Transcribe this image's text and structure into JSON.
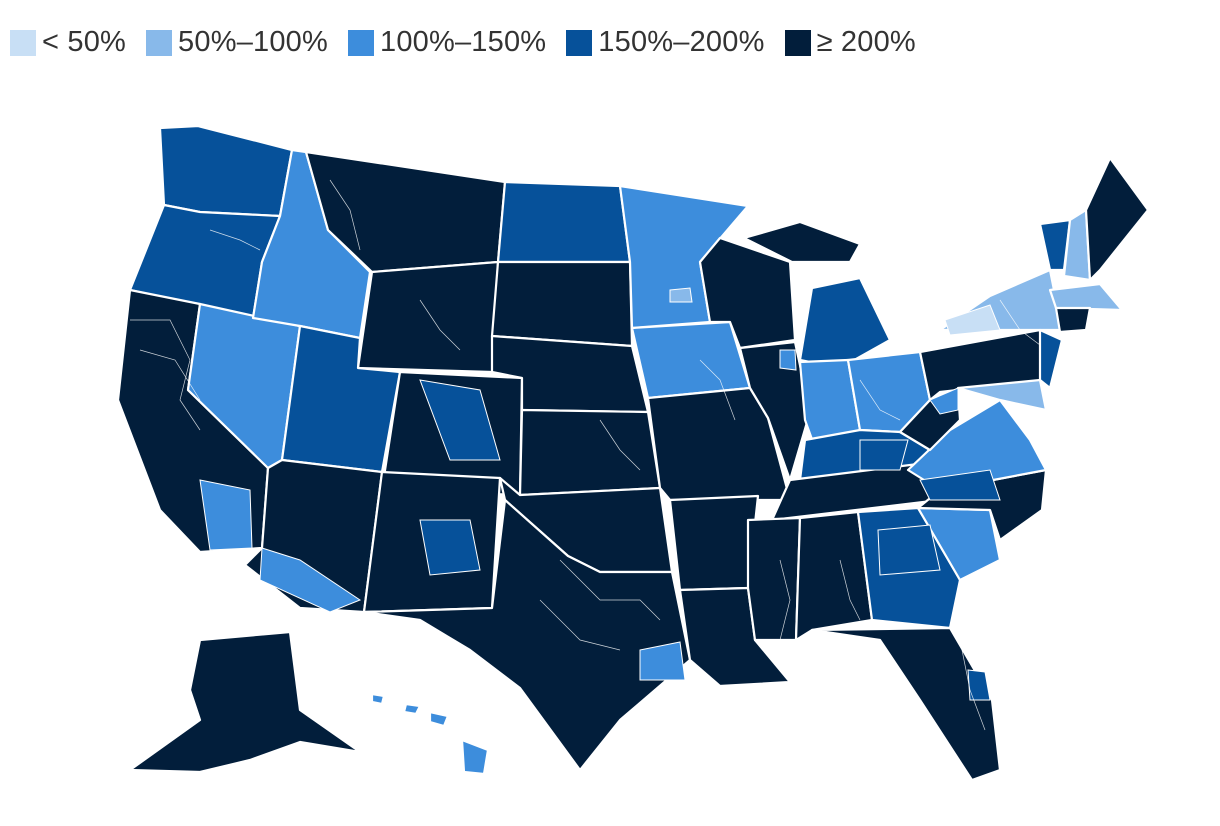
{
  "legend": [
    {
      "label": "< 50%",
      "color": "#c8dff5"
    },
    {
      "label": "50%–100%",
      "color": "#88b9ea"
    },
    {
      "label": "100%–150%",
      "color": "#3d8ddc"
    },
    {
      "label": "150%–200%",
      "color": "#06519a"
    },
    {
      "label": "≥ 200%",
      "color": "#021e3b"
    }
  ]
}
